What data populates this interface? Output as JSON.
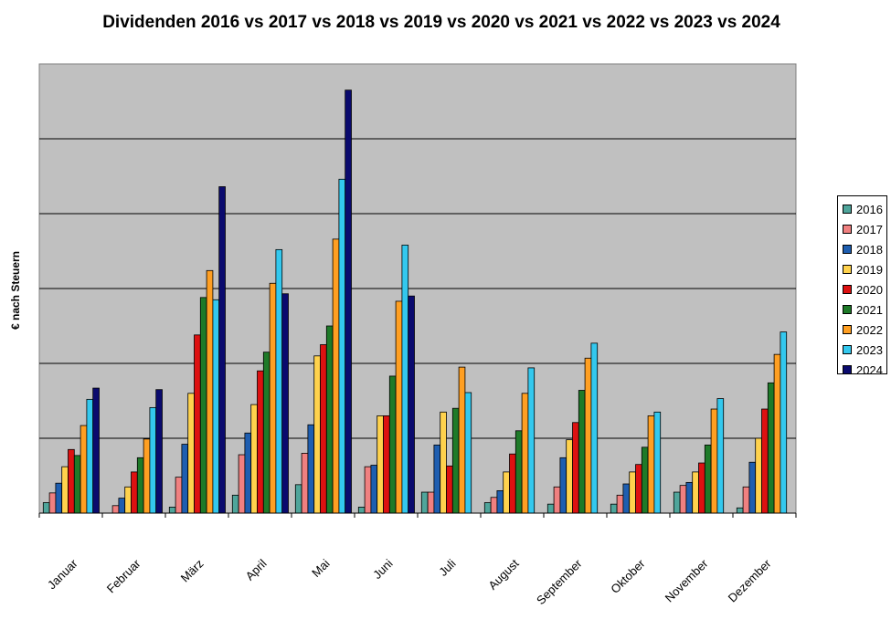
{
  "chart_data": {
    "type": "bar",
    "title": "Dividenden 2016 vs 2017 vs 2018 vs 2019 vs 2020 vs 2021 vs 2022 vs 2023 vs 2024",
    "xlabel": "",
    "ylabel": "€ nach Steuern",
    "ylim": [
      0,
      6
    ],
    "grid": true,
    "legend": "right",
    "categories": [
      "Januar",
      "Februar",
      "März",
      "April",
      "Mai",
      "Juni",
      "Juli",
      "August",
      "September",
      "Oktober",
      "November",
      "Dezember"
    ],
    "series": [
      {
        "name": "2016",
        "color": "#4fa59b",
        "values": [
          0.14,
          0,
          0.08,
          0.24,
          0.38,
          0.08,
          0.28,
          0.14,
          0.12,
          0.12,
          0.28,
          0.07
        ]
      },
      {
        "name": "2017",
        "color": "#f08080",
        "values": [
          0.27,
          0.1,
          0.48,
          0.78,
          0.8,
          0.62,
          0.28,
          0.21,
          0.35,
          0.24,
          0.37,
          0.35
        ]
      },
      {
        "name": "2018",
        "color": "#1e5eb0",
        "values": [
          0.4,
          0.2,
          0.92,
          1.07,
          1.18,
          0.64,
          0.91,
          0.3,
          0.74,
          0.39,
          0.41,
          0.68
        ]
      },
      {
        "name": "2019",
        "color": "#ffd24d",
        "values": [
          0.62,
          0.35,
          1.6,
          1.45,
          2.1,
          1.3,
          1.35,
          0.55,
          0.98,
          0.55,
          0.55,
          1.0
        ]
      },
      {
        "name": "2020",
        "color": "#dd1111",
        "values": [
          0.85,
          0.55,
          2.38,
          1.9,
          2.25,
          1.3,
          0.63,
          0.79,
          1.21,
          0.65,
          0.67,
          1.39
        ]
      },
      {
        "name": "2021",
        "color": "#1e7a28",
        "values": [
          0.77,
          0.74,
          2.88,
          2.15,
          2.5,
          1.83,
          1.4,
          1.1,
          1.64,
          0.88,
          0.91,
          1.74
        ]
      },
      {
        "name": "2022",
        "color": "#ff9f22",
        "values": [
          1.17,
          0.99,
          3.24,
          3.07,
          3.66,
          2.83,
          1.95,
          1.6,
          2.07,
          1.3,
          1.39,
          2.12
        ]
      },
      {
        "name": "2023",
        "color": "#33c8ee",
        "values": [
          1.52,
          1.41,
          2.85,
          3.52,
          4.46,
          3.58,
          1.61,
          1.94,
          2.27,
          1.35,
          1.53,
          2.42
        ]
      },
      {
        "name": "2024",
        "color": "#0a0a6e",
        "values": [
          1.67,
          1.65,
          4.36,
          2.93,
          5.65,
          2.9,
          0,
          0,
          0,
          0,
          0,
          0
        ]
      }
    ]
  }
}
